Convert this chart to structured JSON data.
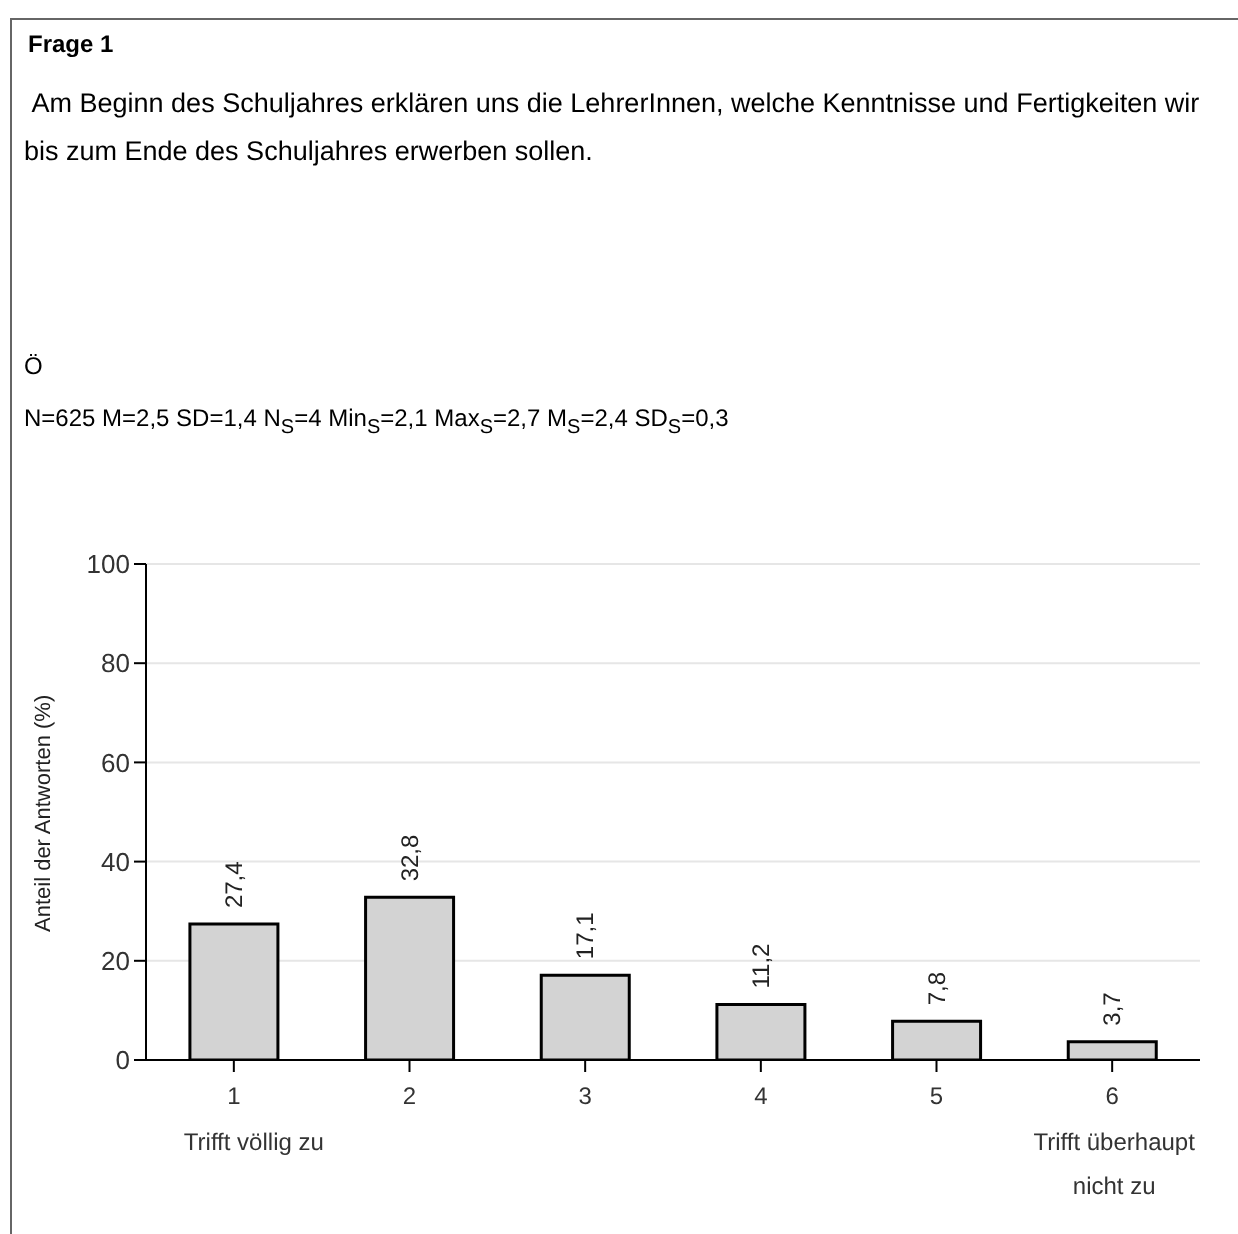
{
  "chart_data": {
    "type": "bar",
    "title": "Frage 1",
    "subtitle": " Am Beginn des Schuljahres erklären uns die LehrerInnen, welche Kenntnisse und Fertigkeiten wir bis zum Ende des Schuljahres erwerben sollen.",
    "annotations": [
      "Ö",
      "N=625 M=2,5 SD=1,4 N$_{S}$=4 Min$_{S}$=2,1 Max$_{S}$=2,7 M$_{S}$=2,4 SD$_{S}$=0,3",
      "Trifft völlig zu",
      "Trifft überhaupt nicht zu"
    ],
    "ylabel": "Anteil der Antworten (%)",
    "categories": [
      "1",
      "2",
      "3",
      "4",
      "5",
      "6"
    ],
    "values": [
      27.4,
      32.8,
      17.1,
      11.2,
      7.8,
      3.7
    ],
    "value_labels": [
      "27,4",
      "32,8",
      "17,1",
      "11,2",
      "7,8",
      "3,7"
    ],
    "color": "#d3d3d3",
    "ylim": [
      0,
      100
    ],
    "yticks": [
      0,
      20,
      40,
      60,
      80,
      100
    ],
    "grid": "y"
  }
}
